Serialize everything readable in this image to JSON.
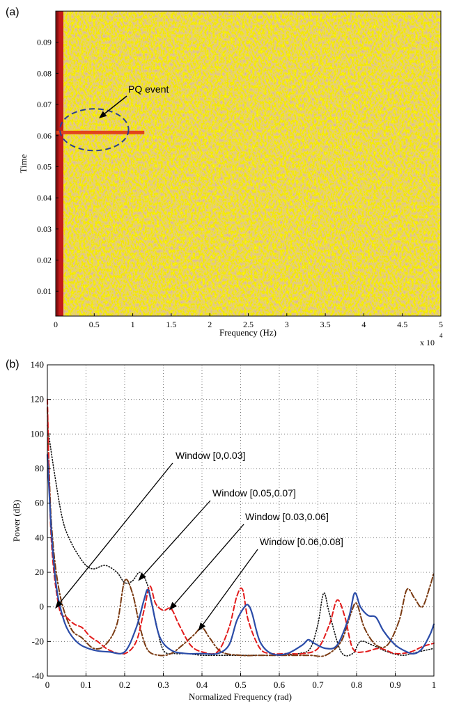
{
  "figure": {
    "panel_a_label": "(a)",
    "panel_b_label": "(b)"
  },
  "chart_data": [
    {
      "type": "heatmap",
      "xlabel": "Frequency (Hz)",
      "ylabel": "Time",
      "x_ticks": [
        "0",
        "0.5",
        "1",
        "1.5",
        "2",
        "2.5",
        "3",
        "3.5",
        "4",
        "4.5",
        "5"
      ],
      "x_multiplier_base": "x 10",
      "x_multiplier_exp": "4",
      "y_ticks": [
        "0.01",
        "0.02",
        "0.03",
        "0.04",
        "0.05",
        "0.06",
        "0.07",
        "0.08",
        "0.09"
      ],
      "xlim": [
        0,
        50000
      ],
      "ylim": [
        0.002,
        0.1
      ],
      "event_time": 0.061,
      "event_freq_extent": [
        0,
        11500
      ],
      "annotation": "PQ event",
      "colors": {
        "low": "#9fd6c4",
        "mid": "#f5e21f",
        "high": "#f29a2a",
        "peak": "#c81818",
        "ellipse": "#2a3f8f"
      }
    },
    {
      "type": "line",
      "xlabel": "Normalized Frequency (rad)",
      "ylabel": "Power (dB)",
      "xlim": [
        0,
        1
      ],
      "ylim": [
        -40,
        140
      ],
      "x_ticks": [
        "0",
        "0.1",
        "0.2",
        "0.3",
        "0.4",
        "0.5",
        "0.6",
        "0.7",
        "0.8",
        "0.9",
        "1"
      ],
      "y_ticks": [
        "-40",
        "-20",
        "0",
        "20",
        "40",
        "60",
        "80",
        "100",
        "120",
        "140"
      ],
      "grid": true,
      "series": [
        {
          "style": "solid",
          "color": "#2b4ca8",
          "x": [
            0,
            0.01,
            0.02,
            0.03,
            0.05,
            0.08,
            0.12,
            0.16,
            0.2,
            0.23,
            0.25,
            0.26,
            0.27,
            0.29,
            0.32,
            0.36,
            0.4,
            0.44,
            0.47,
            0.49,
            0.51,
            0.52,
            0.53,
            0.55,
            0.58,
            0.62,
            0.66,
            0.675,
            0.69,
            0.72,
            0.75,
            0.78,
            0.795,
            0.81,
            0.83,
            0.85,
            0.87,
            0.9,
            0.93,
            0.95,
            0.97,
            0.99,
            1.0
          ],
          "y": [
            88,
            45,
            18,
            3,
            -12,
            -21,
            -25,
            -26,
            -26,
            -12,
            4,
            10,
            2,
            -17,
            -25,
            -27,
            -27,
            -27,
            -22,
            -8,
            0,
            1,
            -4,
            -20,
            -27,
            -27,
            -22,
            -19,
            -21,
            -24,
            -22,
            -6,
            8,
            0,
            -5,
            -6,
            -14,
            -22,
            -26,
            -27,
            -24,
            -16,
            -10
          ]
        },
        {
          "style": "dashed",
          "color": "#e21b1b",
          "x": [
            0,
            0.01,
            0.03,
            0.05,
            0.07,
            0.09,
            0.11,
            0.13,
            0.16,
            0.2,
            0.23,
            0.25,
            0.265,
            0.28,
            0.3,
            0.32,
            0.34,
            0.37,
            0.4,
            0.44,
            0.47,
            0.49,
            0.505,
            0.52,
            0.55,
            0.58,
            0.62,
            0.66,
            0.7,
            0.73,
            0.75,
            0.77,
            0.79,
            0.82,
            0.86,
            0.9,
            0.94,
            0.97,
            1.0
          ],
          "y": [
            120,
            40,
            0,
            -6,
            -10,
            -12,
            -17,
            -20,
            -25,
            -27,
            -20,
            -2,
            12,
            2,
            -2,
            -1,
            -10,
            -22,
            -26,
            -26,
            -12,
            6,
            10,
            -8,
            -24,
            -27,
            -27,
            -27,
            -24,
            -10,
            4,
            -6,
            -24,
            -26,
            -24,
            -27,
            -26,
            -23,
            -21
          ]
        },
        {
          "style": "dotted",
          "color": "#111111",
          "x": [
            0,
            0.02,
            0.04,
            0.06,
            0.08,
            0.1,
            0.12,
            0.15,
            0.18,
            0.2,
            0.22,
            0.24,
            0.26,
            0.28,
            0.3,
            0.33,
            0.36,
            0.4,
            0.45,
            0.5,
            0.55,
            0.6,
            0.65,
            0.68,
            0.7,
            0.715,
            0.73,
            0.76,
            0.79,
            0.81,
            0.84,
            0.88,
            0.92,
            0.96,
            1.0
          ],
          "y": [
            105,
            75,
            50,
            38,
            30,
            24,
            22,
            24,
            20,
            14,
            15,
            20,
            12,
            -8,
            -25,
            -27,
            -27,
            -28,
            -28,
            -28,
            -28,
            -28,
            -27,
            -24,
            -10,
            8,
            -4,
            -26,
            -27,
            -20,
            -22,
            -26,
            -28,
            -26,
            -24
          ]
        },
        {
          "style": "dashdot",
          "color": "#7a3a12",
          "x": [
            0,
            0.01,
            0.03,
            0.06,
            0.09,
            0.12,
            0.15,
            0.18,
            0.2,
            0.22,
            0.24,
            0.26,
            0.29,
            0.32,
            0.35,
            0.38,
            0.4,
            0.42,
            0.45,
            0.5,
            0.55,
            0.6,
            0.64,
            0.68,
            0.72,
            0.76,
            0.785,
            0.8,
            0.82,
            0.85,
            0.88,
            0.91,
            0.93,
            0.95,
            0.97,
            0.99,
            1.0
          ],
          "y": [
            115,
            50,
            10,
            -12,
            -18,
            -24,
            -22,
            -10,
            15,
            8,
            -12,
            -25,
            -28,
            -27,
            -22,
            -16,
            -12,
            -18,
            -26,
            -28,
            -28,
            -28,
            -28,
            -28,
            -28,
            -20,
            -4,
            2,
            -12,
            -22,
            -22,
            -8,
            10,
            5,
            0,
            12,
            20
          ]
        }
      ],
      "annotations": [
        {
          "text": "Window [0,0.03]",
          "x": 0.02,
          "y": -1
        },
        {
          "text": "Window [0.05,0.07]",
          "x": 0.235,
          "y": 15
        },
        {
          "text": "Window [0.03,0.06]",
          "x": 0.315,
          "y": -2
        },
        {
          "text": "Window [0.06,0.08]",
          "x": 0.39,
          "y": -14
        }
      ]
    }
  ]
}
